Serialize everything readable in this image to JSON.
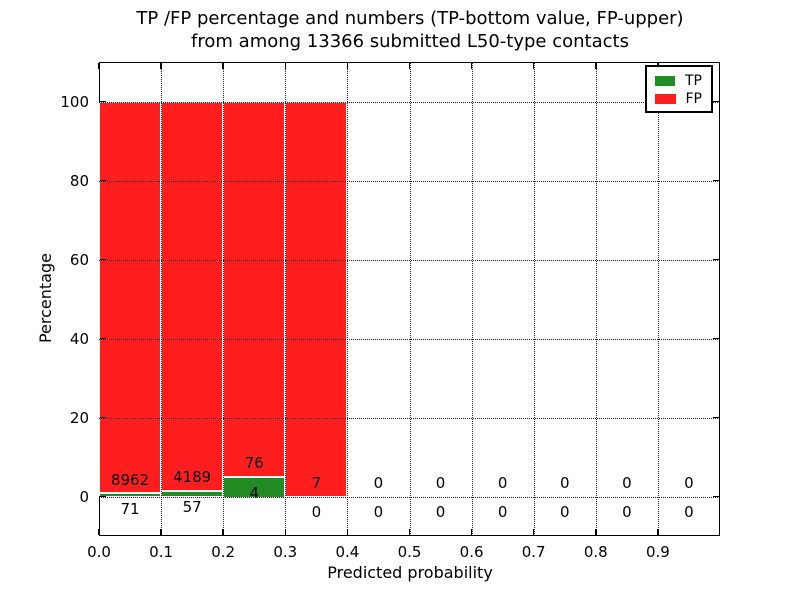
{
  "chart_data": {
    "type": "bar",
    "stacked": true,
    "title_line1": "TP /FP percentage and numbers (TP-bottom value, FP-upper)",
    "title_line2": "from among 13366 submitted L50-type contacts",
    "xlabel": "Predicted probability",
    "ylabel": "Percentage",
    "xlim": [
      0.0,
      1.0
    ],
    "ylim": [
      -10,
      110
    ],
    "xtick_labels": [
      "0.0",
      "0.1",
      "0.2",
      "0.3",
      "0.4",
      "0.5",
      "0.6",
      "0.7",
      "0.8",
      "0.9"
    ],
    "ytick_labels": [
      "0",
      "20",
      "40",
      "60",
      "80",
      "100"
    ],
    "grid": "dotted",
    "bin_width": 0.1,
    "series": [
      {
        "name": "TP",
        "color": "#228b22"
      },
      {
        "name": "FP",
        "color": "#ff1e1e"
      }
    ],
    "bins": [
      {
        "range": [
          0.0,
          0.1
        ],
        "tp_count": 71,
        "fp_count": 8962,
        "tp_pct": 0.79,
        "fp_pct": 99.21
      },
      {
        "range": [
          0.1,
          0.2
        ],
        "tp_count": 57,
        "fp_count": 4189,
        "tp_pct": 1.34,
        "fp_pct": 98.66
      },
      {
        "range": [
          0.2,
          0.3
        ],
        "tp_count": 4,
        "fp_count": 76,
        "tp_pct": 5.0,
        "fp_pct": 95.0
      },
      {
        "range": [
          0.3,
          0.4
        ],
        "tp_count": 0,
        "fp_count": 7,
        "tp_pct": 0.0,
        "fp_pct": 100.0
      },
      {
        "range": [
          0.4,
          0.5
        ],
        "tp_count": 0,
        "fp_count": 0,
        "tp_pct": 0.0,
        "fp_pct": 0.0
      },
      {
        "range": [
          0.5,
          0.6
        ],
        "tp_count": 0,
        "fp_count": 0,
        "tp_pct": 0.0,
        "fp_pct": 0.0
      },
      {
        "range": [
          0.6,
          0.7
        ],
        "tp_count": 0,
        "fp_count": 0,
        "tp_pct": 0.0,
        "fp_pct": 0.0
      },
      {
        "range": [
          0.7,
          0.8
        ],
        "tp_count": 0,
        "fp_count": 0,
        "tp_pct": 0.0,
        "fp_pct": 0.0
      },
      {
        "range": [
          0.8,
          0.9
        ],
        "tp_count": 0,
        "fp_count": 0,
        "tp_pct": 0.0,
        "fp_pct": 0.0
      },
      {
        "range": [
          0.9,
          1.0
        ],
        "tp_count": 0,
        "fp_count": 0,
        "tp_pct": 0.0,
        "fp_pct": 0.0
      }
    ],
    "legend": {
      "position": "upper right",
      "entries": [
        {
          "label": "TP",
          "color": "#228b22"
        },
        {
          "label": "FP",
          "color": "#ff1e1e"
        }
      ]
    },
    "colors": {
      "tp": "#228b22",
      "fp": "#ff1e1e",
      "bar_edge": "#ffffff",
      "grid": "#000000",
      "background": "#ffffff"
    }
  }
}
